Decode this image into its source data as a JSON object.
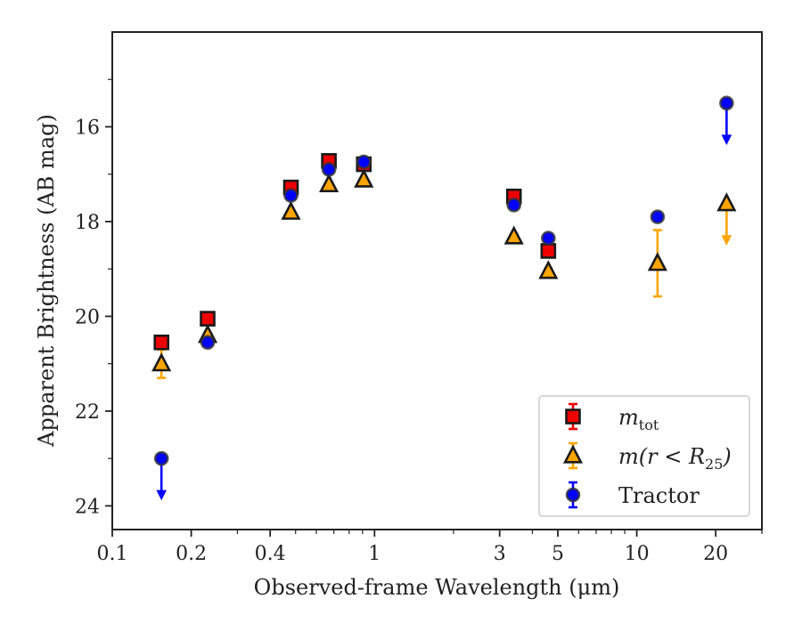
{
  "chart_data": {
    "type": "scatter",
    "xlabel": "Observed-frame Wavelength (μm)",
    "ylabel": "Apparent Brightness (AB mag)",
    "xscale": "log",
    "xlim": [
      0.1,
      30
    ],
    "ylim": [
      24.5,
      14.0
    ],
    "y_inverted": true,
    "x_ticks": [
      0.1,
      0.2,
      0.4,
      1,
      3,
      5,
      10,
      20
    ],
    "x_tick_labels": [
      "0.1",
      "0.2",
      "0.4",
      "1",
      "3",
      "5",
      "10",
      "20"
    ],
    "y_ticks": [
      16,
      18,
      20,
      22,
      24
    ],
    "y_tick_labels": [
      "16",
      "18",
      "20",
      "22",
      "24"
    ],
    "grid": false,
    "legend_position": "lower-right",
    "series": [
      {
        "name": "m_tot",
        "marker": "square",
        "color": "#ee0000",
        "points": [
          {
            "x": 0.154,
            "y": 20.55,
            "err": 0.08
          },
          {
            "x": 0.231,
            "y": 20.05,
            "err": 0.05
          },
          {
            "x": 0.48,
            "y": 17.28,
            "err": 0.03
          },
          {
            "x": 0.67,
            "y": 16.72,
            "err": 0.03
          },
          {
            "x": 0.91,
            "y": 16.79,
            "err": 0.03
          },
          {
            "x": 3.4,
            "y": 17.47,
            "err": 0.05
          },
          {
            "x": 4.6,
            "y": 18.62,
            "err": 0.07
          }
        ]
      },
      {
        "name": "m(r < R_25)",
        "marker": "triangle",
        "color": "#ffa500",
        "points": [
          {
            "x": 0.154,
            "y": 21.0,
            "err": 0.3
          },
          {
            "x": 0.231,
            "y": 20.4,
            "err": 0.05
          },
          {
            "x": 0.48,
            "y": 17.8,
            "err": 0.03
          },
          {
            "x": 0.67,
            "y": 17.22,
            "err": 0.03
          },
          {
            "x": 0.91,
            "y": 17.12,
            "err": 0.03
          },
          {
            "x": 3.4,
            "y": 18.32,
            "err": 0.05
          },
          {
            "x": 4.6,
            "y": 19.05,
            "err": 0.06
          },
          {
            "x": 12.0,
            "y": 18.88,
            "err": 0.7
          },
          {
            "x": 22.0,
            "y": 17.62,
            "upper_limit": true
          }
        ]
      },
      {
        "name": "Tractor",
        "marker": "circle",
        "color": "#0000ff",
        "points": [
          {
            "x": 0.154,
            "y": 23.0,
            "upper_limit": true
          },
          {
            "x": 0.231,
            "y": 20.55,
            "err": 0.05
          },
          {
            "x": 0.48,
            "y": 17.45,
            "err": 0.03
          },
          {
            "x": 0.67,
            "y": 16.9,
            "err": 0.03
          },
          {
            "x": 0.91,
            "y": 16.74,
            "err": 0.03
          },
          {
            "x": 3.4,
            "y": 17.65,
            "err": 0.05
          },
          {
            "x": 4.6,
            "y": 18.35,
            "err": 0.05
          },
          {
            "x": 12.0,
            "y": 17.9,
            "err": 0.05
          },
          {
            "x": 22.0,
            "y": 15.5,
            "upper_limit": true
          }
        ]
      }
    ]
  },
  "legend": [
    {
      "series": "m_tot",
      "base": "m",
      "sub": "tot"
    },
    {
      "series": "m(r < R_25)",
      "base": "m(r < R",
      "sub": "25",
      "suffix": ")"
    },
    {
      "series": "Tractor",
      "base": "Tractor",
      "sub": ""
    }
  ]
}
